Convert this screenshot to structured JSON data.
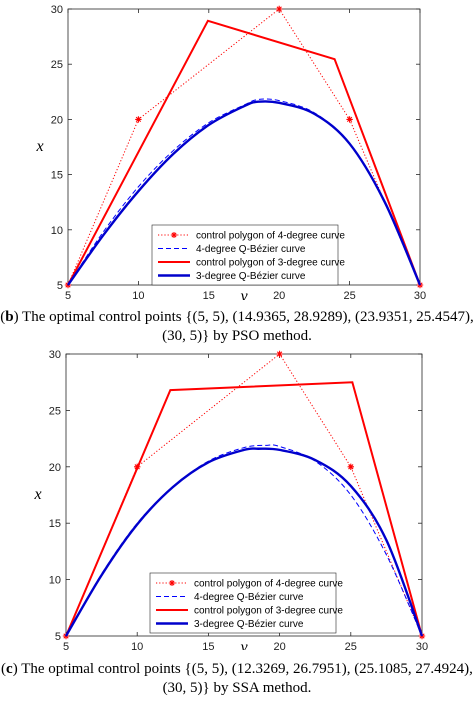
{
  "chart_data": [
    {
      "type": "line",
      "xlabel": "y",
      "ylabel": "x",
      "xlim": [
        5,
        30
      ],
      "ylim": [
        5,
        30
      ],
      "xticks": [
        "5",
        "10",
        "15",
        "20",
        "25",
        "30"
      ],
      "yticks": [
        "5",
        "10",
        "15",
        "20",
        "25",
        "30"
      ],
      "legend_position": "bottom-center",
      "caption_label": "b",
      "caption_text": "The optimal control points {(5, 5), (14.9365, 28.9289), (23.9351, 25.4547), (30, 5)} by PSO method.",
      "series": [
        {
          "name": "control polygon of 4-degree curve",
          "style": "dotted-star",
          "color": "#ff0000",
          "points": [
            [
              5,
              5
            ],
            [
              10,
              20
            ],
            [
              20,
              30
            ],
            [
              25,
              20
            ],
            [
              30,
              5
            ]
          ]
        },
        {
          "name": "4-degree Q-Bézier curve",
          "style": "dashed",
          "color": "#0000ff",
          "points": [
            [
              5,
              5
            ],
            [
              7.5,
              9.8
            ],
            [
              10,
              13.9
            ],
            [
              12.5,
              17.2
            ],
            [
              15,
              19.7
            ],
            [
              17.5,
              21.3
            ],
            [
              18.5,
              21.8
            ],
            [
              20,
              21.7
            ],
            [
              22.5,
              20.6
            ],
            [
              25,
              17.8
            ],
            [
              27.5,
              12.6
            ],
            [
              30,
              5
            ]
          ]
        },
        {
          "name": "control polygon of 3-degree curve",
          "style": "solid",
          "color": "#ff0000",
          "points": [
            [
              5,
              5
            ],
            [
              14.9365,
              28.9289
            ],
            [
              23.9351,
              25.4547
            ],
            [
              30,
              5
            ]
          ]
        },
        {
          "name": "3-degree Q-Bézier curve",
          "style": "solid-thick",
          "color": "#0000cc",
          "points": [
            [
              5,
              5
            ],
            [
              7.5,
              9.5
            ],
            [
              10,
              13.5
            ],
            [
              12.5,
              16.9
            ],
            [
              15,
              19.5
            ],
            [
              17.5,
              21.2
            ],
            [
              18.5,
              21.6
            ],
            [
              20,
              21.5
            ],
            [
              22.5,
              20.5
            ],
            [
              25,
              17.8
            ],
            [
              27.5,
              12.5
            ],
            [
              30,
              5
            ]
          ]
        }
      ]
    },
    {
      "type": "line",
      "xlabel": "y",
      "ylabel": "x",
      "xlim": [
        5,
        30
      ],
      "ylim": [
        5,
        30
      ],
      "xticks": [
        "5",
        "10",
        "15",
        "20",
        "25",
        "30"
      ],
      "yticks": [
        "5",
        "10",
        "15",
        "20",
        "25",
        "30"
      ],
      "legend_position": "bottom-center",
      "caption_label": "c",
      "caption_text": "The optimal control points {(5, 5), (12.3269, 26.7951), (25.1085, 27.4924), (30, 5)} by SSA method.",
      "series": [
        {
          "name": "control polygon of 4-degree curve",
          "style": "dotted-star",
          "color": "#ff0000",
          "points": [
            [
              5,
              5
            ],
            [
              10,
              20
            ],
            [
              20,
              30
            ],
            [
              25,
              20
            ],
            [
              30,
              5
            ]
          ]
        },
        {
          "name": "4-degree Q-Bézier curve",
          "style": "dashed",
          "color": "#0000ff",
          "points": [
            [
              5,
              5
            ],
            [
              7.5,
              10.5
            ],
            [
              10,
              15
            ],
            [
              12.5,
              18.2
            ],
            [
              15,
              20.5
            ],
            [
              17.5,
              21.7
            ],
            [
              19,
              21.9
            ],
            [
              20,
              21.8
            ],
            [
              22.5,
              20.5
            ],
            [
              25,
              17.5
            ],
            [
              27.5,
              12.2
            ],
            [
              30,
              5
            ]
          ]
        },
        {
          "name": "control polygon of 3-degree curve",
          "style": "solid",
          "color": "#ff0000",
          "points": [
            [
              5,
              5
            ],
            [
              12.3269,
              26.7951
            ],
            [
              25.1085,
              27.4924
            ],
            [
              30,
              5
            ]
          ]
        },
        {
          "name": "3-degree Q-Bézier curve",
          "style": "solid-thick",
          "color": "#0000cc",
          "points": [
            [
              5,
              5
            ],
            [
              7.5,
              10.4
            ],
            [
              10,
              14.9
            ],
            [
              12.5,
              18.2
            ],
            [
              15,
              20.4
            ],
            [
              17.5,
              21.5
            ],
            [
              18.5,
              21.6
            ],
            [
              20,
              21.5
            ],
            [
              22.5,
              20.6
            ],
            [
              25,
              18.3
            ],
            [
              27.5,
              13.5
            ],
            [
              30,
              5
            ]
          ]
        }
      ]
    }
  ]
}
